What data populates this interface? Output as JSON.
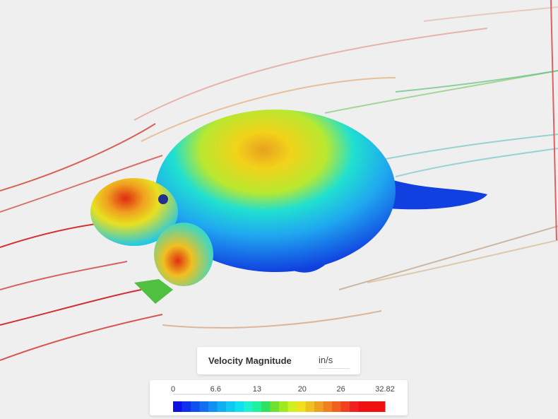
{
  "legend": {
    "title": "Velocity Magnitude",
    "unit": "in/s",
    "ticks": [
      0,
      6.6,
      13,
      20,
      26,
      32.82
    ]
  }
}
